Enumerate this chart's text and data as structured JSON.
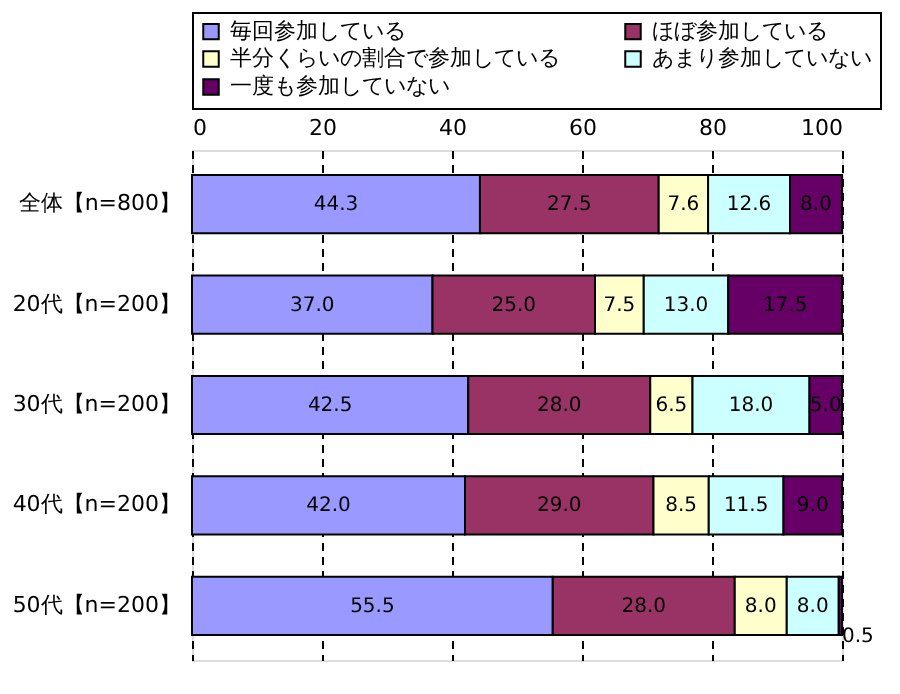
{
  "chart_data": {
    "type": "bar",
    "orientation": "horizontal",
    "stacked": true,
    "legend": "top",
    "grid": "x",
    "line_style": "dashed",
    "categories": [
      "全体【n=800】",
      "20代【n=200】",
      "30代【n=200】",
      "40代【n=200】",
      "50代【n=200】"
    ],
    "xlim": [
      0,
      100
    ],
    "xticks": [
      0,
      20,
      40,
      60,
      80,
      100
    ],
    "series": [
      {
        "name": "毎回参加している",
        "color": "#9999ff",
        "values": [
          44.3,
          37.0,
          42.5,
          42.0,
          55.5
        ],
        "value_labels": [
          "44.3",
          "37.0",
          "42.5",
          "42.0",
          "55.5"
        ]
      },
      {
        "name": "ほぼ参加している",
        "color": "#993366",
        "values": [
          27.5,
          25.0,
          28.0,
          29.0,
          28.0
        ],
        "value_labels": [
          "27.5",
          "25.0",
          "28.0",
          "29.0",
          "28.0"
        ]
      },
      {
        "name": "半分くらいの割合で参加している",
        "color": "#ffffcc",
        "values": [
          7.6,
          7.5,
          6.5,
          8.5,
          8.0
        ],
        "value_labels": [
          "7.6",
          "7.5",
          "6.5",
          "8.5",
          "8.0"
        ]
      },
      {
        "name": "あまり参加していない",
        "color": "#ccffff",
        "values": [
          12.6,
          13.0,
          18.0,
          11.5,
          8.0
        ],
        "value_labels": [
          "12.6",
          "13.0",
          "18.0",
          "11.5",
          "8.0"
        ]
      },
      {
        "name": "一度も参加していない",
        "color": "#660066",
        "values": [
          8.0,
          17.5,
          5.0,
          9.0,
          0.5
        ],
        "value_labels": [
          "8.0",
          "17.5",
          "5.0",
          "9.0",
          "0.5"
        ]
      }
    ]
  }
}
